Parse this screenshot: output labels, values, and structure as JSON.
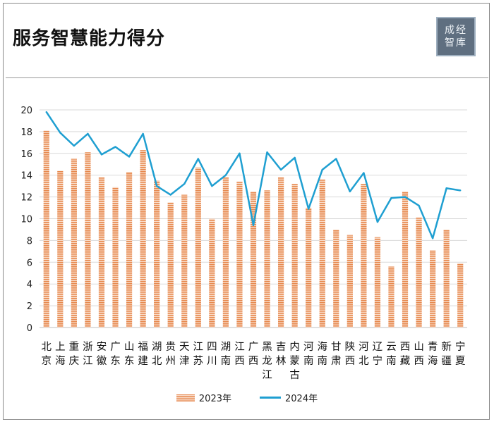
{
  "title": "服务智慧能力得分",
  "logo": {
    "line1": "成经",
    "line2": "智库"
  },
  "colors": {
    "bar": "#e6894f",
    "line": "#1f9fd1",
    "grid": "#d9d9d9"
  },
  "chart_data": {
    "type": "bar",
    "categories": [
      "北京",
      "上海",
      "重庆",
      "浙江",
      "安徽",
      "广东",
      "山东",
      "福建",
      "湖北",
      "贵州",
      "天津",
      "江苏",
      "四川",
      "湖南",
      "江西",
      "广西",
      "黑龙江",
      "吉林",
      "内蒙古",
      "河南",
      "海南",
      "甘肃",
      "陕西",
      "河北",
      "辽宁",
      "云南",
      "西藏",
      "山西",
      "青海",
      "新疆",
      "宁夏"
    ],
    "ylim": [
      0,
      20
    ],
    "yticks": [
      0,
      2,
      4,
      6,
      8,
      10,
      12,
      14,
      16,
      18,
      20
    ],
    "series": [
      {
        "name": "2023年",
        "type": "bar",
        "values": [
          18.1,
          14.4,
          15.5,
          16.1,
          13.8,
          12.9,
          14.3,
          16.3,
          13.5,
          11.5,
          12.2,
          14.7,
          10.0,
          13.8,
          13.4,
          12.5,
          12.6,
          13.8,
          13.2,
          11.0,
          13.6,
          9.0,
          8.5,
          13.2,
          8.3,
          5.6,
          12.5,
          10.1,
          7.1,
          9.0,
          5.9
        ]
      },
      {
        "name": "2024年",
        "type": "line",
        "values": [
          19.8,
          17.9,
          16.7,
          17.8,
          15.9,
          16.6,
          15.7,
          17.8,
          13.0,
          12.2,
          13.2,
          15.5,
          13.0,
          14.0,
          16.0,
          9.4,
          16.1,
          14.5,
          15.6,
          10.9,
          14.5,
          15.5,
          12.5,
          14.2,
          9.7,
          11.9,
          12.0,
          11.2,
          8.2,
          12.8,
          12.6
        ]
      }
    ]
  }
}
